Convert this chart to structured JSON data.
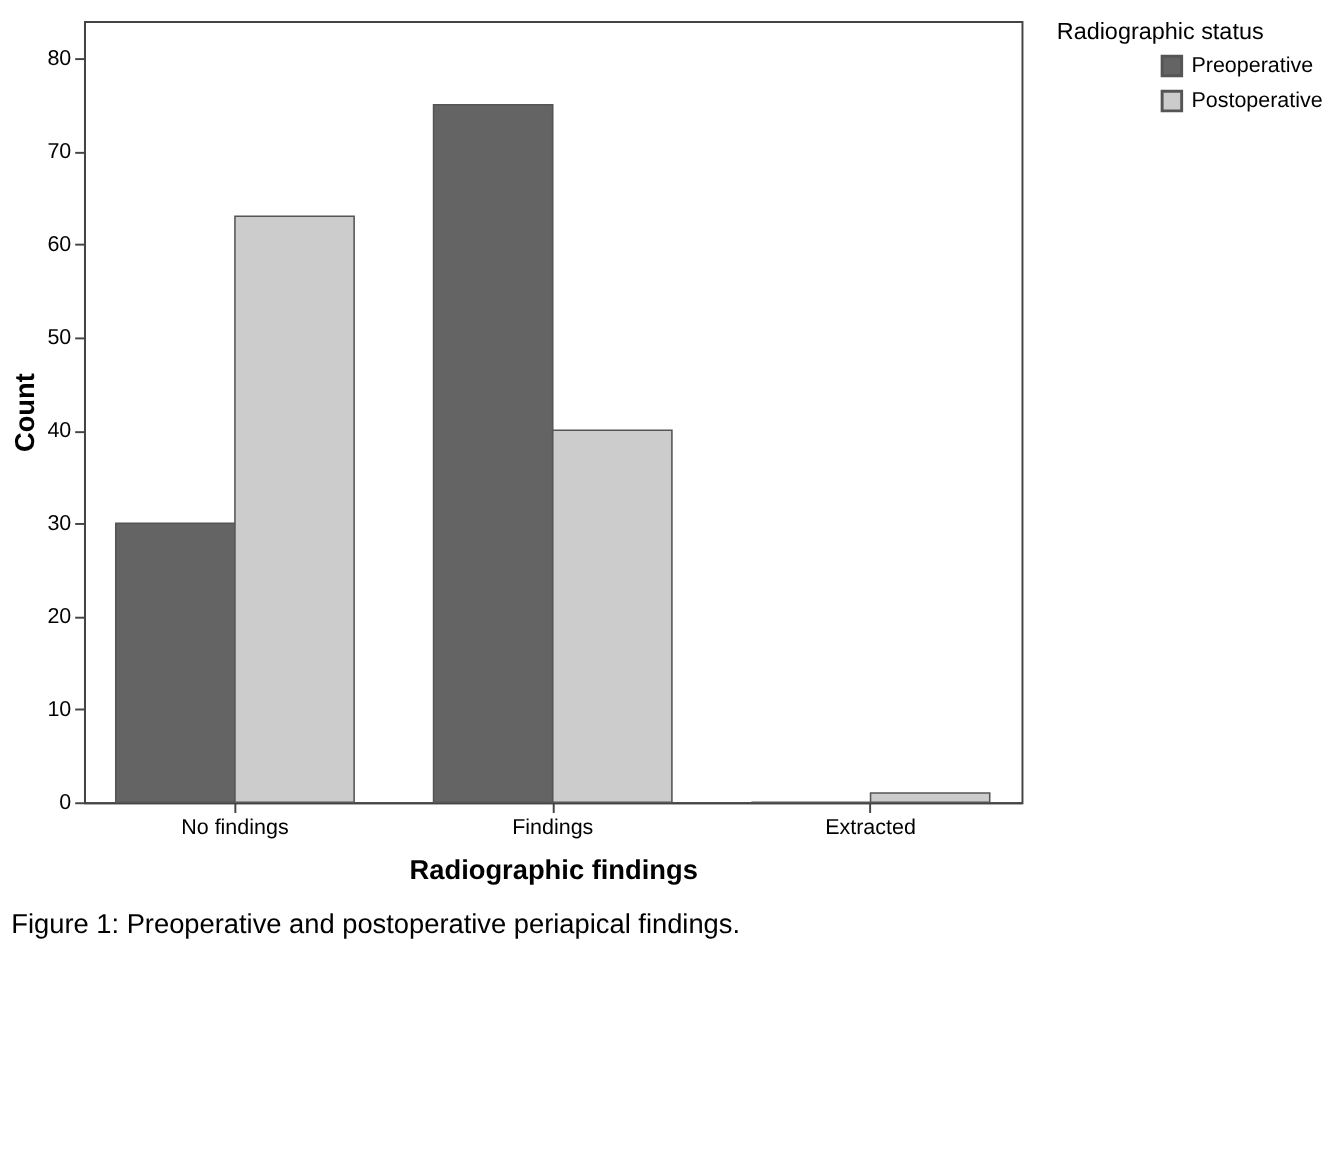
{
  "chart_data": {
    "type": "bar",
    "xlabel": "Radiographic findings",
    "ylabel": "Count",
    "legend_title": "Radiographic status",
    "categories": [
      "No findings",
      "Findings",
      "Extracted"
    ],
    "series": [
      {
        "name": "Preoperative",
        "color": "#646464",
        "values": [
          30,
          75,
          0
        ]
      },
      {
        "name": "Postoperative",
        "color": "#cccccc",
        "values": [
          63,
          40,
          1
        ]
      }
    ],
    "ylim": [
      0,
      84
    ],
    "yticks": [
      0,
      10,
      20,
      30,
      40,
      50,
      60,
      70,
      80
    ],
    "grid": false,
    "legend": "top right",
    "annotations": [
      "Figure 1: Preoperative and postoperative periapical findings."
    ]
  }
}
